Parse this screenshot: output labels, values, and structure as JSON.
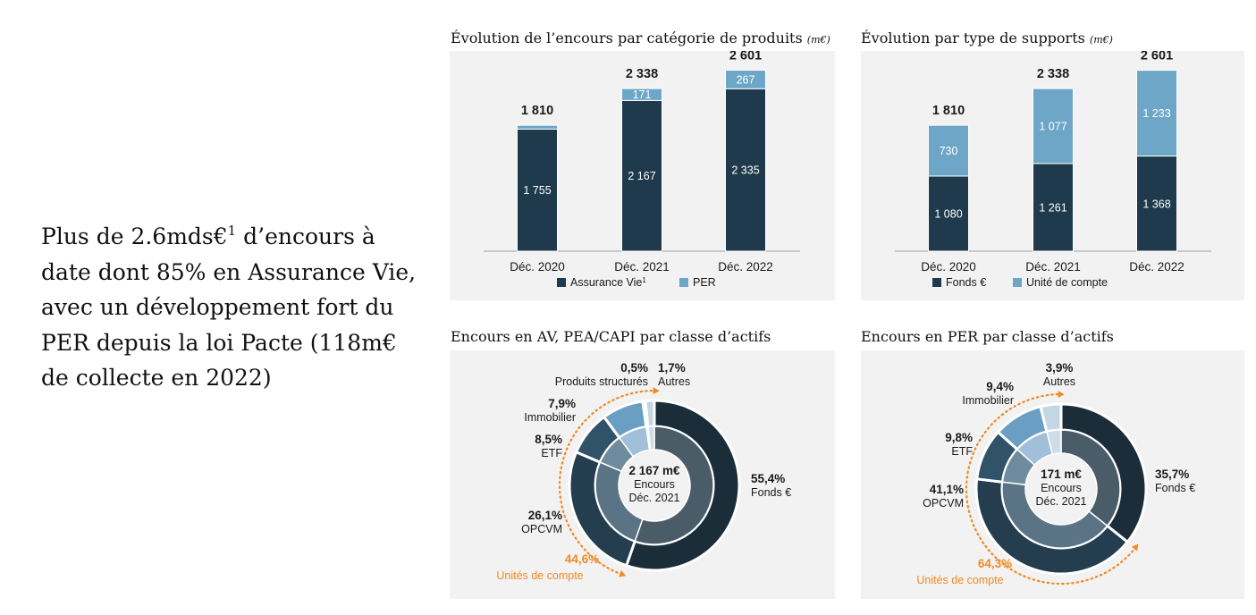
{
  "headline": {
    "before_sup": "Plus de 2.6mds€",
    "sup": "1",
    "after_sup": " d’encours à date dont 85% en Assurance Vie, avec un développement fort du PER depuis la loi Pacte (118m€ de collecte en 2022)"
  },
  "colors": {
    "dark": "#1f3a4c",
    "light": "#6ea6c8",
    "orange": "#f08a24",
    "panel": "#f2f2f2"
  },
  "chart_data": [
    {
      "type": "bar",
      "stacked": true,
      "title": "Évolution de l’encours par catégorie de produits",
      "unit": "(m€)",
      "categories": [
        "Déc. 2020",
        "Déc. 2021",
        "Déc. 2022"
      ],
      "series": [
        {
          "name": "Assurance Vie",
          "name_sup": "1",
          "values": [
            1755,
            2167,
            2335
          ],
          "labels": [
            "1 755",
            "2 167",
            "2 335"
          ],
          "color": "#1f3a4c"
        },
        {
          "name": "PER",
          "values": [
            55,
            171,
            267
          ],
          "labels": [
            "",
            "171",
            "267"
          ],
          "color": "#6ea6c8"
        }
      ],
      "totals": [
        1810,
        2338,
        2601
      ],
      "total_labels": [
        "1 810",
        "2 338",
        "2 601"
      ],
      "ylim": [
        0,
        2750
      ]
    },
    {
      "type": "bar",
      "stacked": true,
      "title": "Évolution par type de supports",
      "unit": "(m€)",
      "categories": [
        "Déc. 2020",
        "Déc. 2021",
        "Déc. 2022"
      ],
      "series": [
        {
          "name": "Fonds €",
          "values": [
            1080,
            1261,
            1368
          ],
          "labels": [
            "1 080",
            "1 261",
            "1 368"
          ],
          "color": "#1f3a4c"
        },
        {
          "name": "Unité de compte",
          "values": [
            730,
            1077,
            1233
          ],
          "labels": [
            "730",
            "1 077",
            "1 233"
          ],
          "color": "#6ea6c8"
        }
      ],
      "totals": [
        1810,
        2338,
        2601
      ],
      "total_labels": [
        "1 810",
        "2 338",
        "2 601"
      ],
      "ylim": [
        0,
        2750
      ]
    },
    {
      "type": "pie",
      "donut": true,
      "title": "Encours en AV, PEA/CAPI par classe d’actifs",
      "center_lines": [
        "2 167 m€",
        "Encours",
        "Déc. 2021"
      ],
      "slices": [
        {
          "name": "Fonds €",
          "value": 55.4,
          "label": "55,4%"
        },
        {
          "name": "OPCVM",
          "value": 26.1,
          "label": "26,1%"
        },
        {
          "name": "ETF",
          "value": 8.5,
          "label": "8,5%"
        },
        {
          "name": "Immobilier",
          "value": 7.9,
          "label": "7,9%"
        },
        {
          "name": "Produits structurés",
          "value": 0.5,
          "label": "0,5%"
        },
        {
          "name": "Autres",
          "value": 1.7,
          "label": "1,7%"
        }
      ],
      "group": {
        "name": "Unités de compte",
        "value": 44.6,
        "label": "44,6%"
      }
    },
    {
      "type": "pie",
      "donut": true,
      "title": "Encours en PER par classe d’actifs",
      "center_lines": [
        "171 m€",
        "Encours",
        "Déc. 2021"
      ],
      "slices": [
        {
          "name": "Fonds €",
          "value": 35.7,
          "label": "35,7%"
        },
        {
          "name": "OPCVM",
          "value": 41.1,
          "label": "41,1%"
        },
        {
          "name": "ETF",
          "value": 9.8,
          "label": "9,8%"
        },
        {
          "name": "Immobilier",
          "value": 9.4,
          "label": "9,4%"
        },
        {
          "name": "Autres",
          "value": 3.9,
          "label": "3,9%"
        }
      ],
      "group": {
        "name": "Unités de compte",
        "value": 64.3,
        "label": "64,3%"
      }
    }
  ]
}
